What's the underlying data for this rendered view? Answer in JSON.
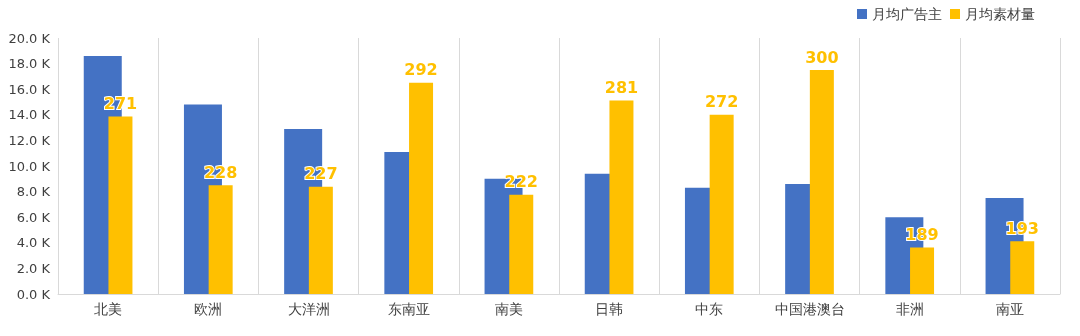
{
  "chart_data": {
    "type": "bar",
    "categories": [
      "北美",
      "欧洲",
      "大洋洲",
      "东南亚",
      "南美",
      "日韩",
      "中东",
      "中国港澳台",
      "非洲",
      "南亚"
    ],
    "series": [
      {
        "name": "月均广告主",
        "color": "#4472c4",
        "values": [
          18.6,
          14.8,
          12.9,
          11.1,
          9.0,
          9.4,
          8.3,
          8.6,
          6.0,
          7.5
        ]
      },
      {
        "name": "月均素材量",
        "color": "#ffc000",
        "axis": "y2",
        "data_labels": true,
        "values": [
          271,
          228,
          227,
          292,
          222,
          281,
          272,
          300,
          189,
          193
        ]
      }
    ],
    "ylim": [
      0,
      20
    ],
    "yticks": [
      {
        "value": 0,
        "label": "0.0 K"
      },
      {
        "value": 2,
        "label": "2.0 K"
      },
      {
        "value": 4,
        "label": "4.0 K"
      },
      {
        "value": 6,
        "label": "6.0 K"
      },
      {
        "value": 8,
        "label": "8.0 K"
      },
      {
        "value": 10,
        "label": "10.0 K"
      },
      {
        "value": 12,
        "label": "12.0 K"
      },
      {
        "value": 14,
        "label": "14.0 K"
      },
      {
        "value": 16,
        "label": "16.0 K"
      },
      {
        "value": 18,
        "label": "18.0 K"
      },
      {
        "value": 20,
        "label": "20.0 K"
      }
    ],
    "y2lim": [
      160,
      320
    ],
    "grid": "x",
    "legend": "top right"
  }
}
